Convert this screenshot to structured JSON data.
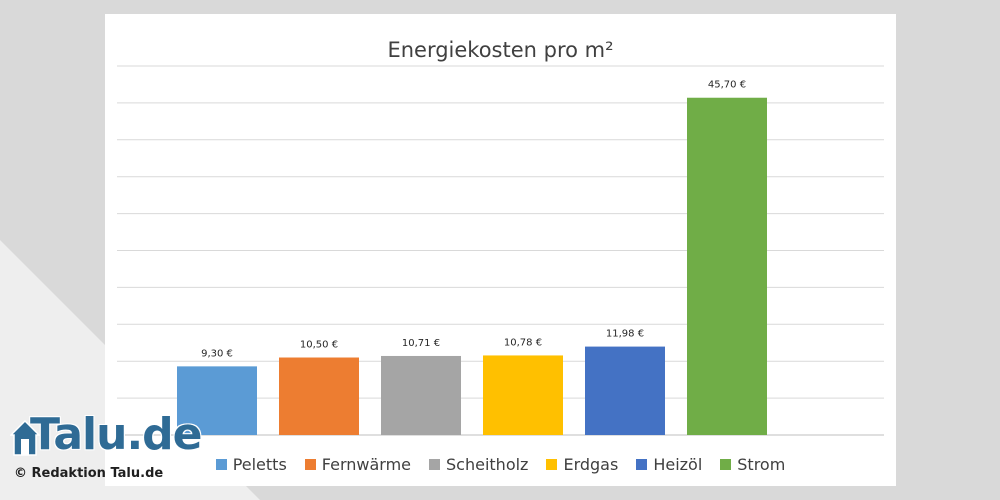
{
  "chart_data": {
    "type": "bar",
    "title": "Energiekosten pro m²",
    "categories": [
      "Peletts",
      "Fernwärme",
      "Scheitholz",
      "Erdgas",
      "Heizöl",
      "Strom"
    ],
    "values": [
      9.3,
      10.5,
      10.71,
      10.78,
      11.98,
      45.7
    ],
    "value_labels": [
      "9,30 €",
      "10,50 €",
      "10,71 €",
      "10,78 €",
      "11,98 €",
      "45,70 €"
    ],
    "colors": [
      "#5b9bd5",
      "#ed7d31",
      "#a5a5a5",
      "#ffc000",
      "#4472c4",
      "#70ad47"
    ],
    "ylim": [
      0,
      50
    ],
    "grid": true,
    "legend_position": "bottom"
  },
  "watermark": {
    "logo_text": "Talu.de",
    "copyright": "© Redaktion Talu.de",
    "brand_color": "#2f6b95"
  }
}
